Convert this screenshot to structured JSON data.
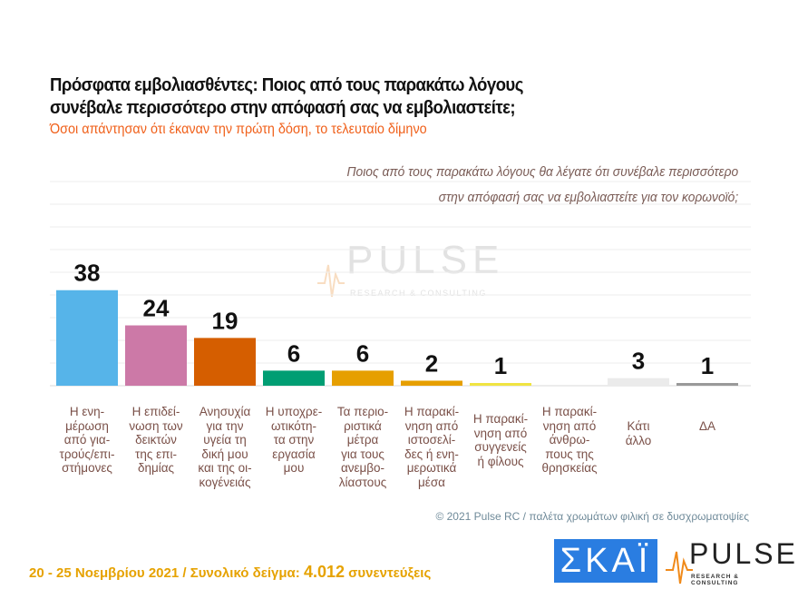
{
  "title_line1": "Πρόσφατα εμβολιασθέντες: Ποιος από τους παρακάτω λόγους",
  "title_line2": "συνέβαλε περισσότερο στην απόφασή σας να εμβολιαστείτε;",
  "subtitle": "Όσοι απάντησαν ότι έκαναν την πρώτη δόση, το τελευταίο δίμηνο",
  "question_line1": "Ποιος από τους παρακάτω λόγους θα λέγατε ότι συνέβαλε περισσότερο",
  "question_line2": "στην απόφασή σας να εμβολιαστείτε για τον κορωνοϊό;",
  "watermark": {
    "word": "PULSE",
    "sub": "RESEARCH & CONSULTING"
  },
  "chart_data": {
    "type": "bar",
    "categories": [
      "Η ενη-\nμέρωση\nαπό για-\nτρούς/επι-\nστήμονες",
      "Η επιδεί-\nνωση των\nδεικτών\nτης επι-\nδημίας",
      "Ανησυχία\nγια την\nυγεία τη\nδική μου\nκαι της οι-\nκογένειάς",
      "Η υποχρε-\nωτικότη-\nτα στην\nεργασία\nμου",
      "Τα περιο-\nριστικά\nμέτρα\nγια τους\nανεμβο-\nλίαστους",
      "Η παρακί-\nνηση από\nιστοσελί-\nδες ή ενη-\nμερωτικά\nμέσα",
      "Η παρακί-\nνηση από\nσυγγενείς\nή φίλους",
      "Η παρακί-\nνηση από\nάνθρω-\nπους της\nθρησκείας",
      "Κάτι\nάλλο",
      "ΔΑ"
    ],
    "values": [
      38,
      24,
      19,
      6,
      6,
      2,
      1,
      null,
      3,
      1
    ],
    "labels": [
      "38",
      "24",
      "19",
      "6",
      "6",
      "2",
      "1",
      "",
      "3",
      "1"
    ],
    "colors": [
      "#56b4e9",
      "#cc79a7",
      "#d55e00",
      "#009e73",
      "#e69f00",
      "#e69f00",
      "#f0e442",
      "#cccccc",
      "#ebebeb",
      "#999999"
    ],
    "ylim": [
      0,
      50
    ],
    "grid": true
  },
  "credit": "© 2021 Pulse RC   /   παλέτα χρωμάτων φιλική σε δυσχρωματοψίες",
  "footer": {
    "dates": "20 - 25  Νοεμβρίου 2021  /  Συνολικό δείγμα:  ",
    "sample": "4.012",
    "unit": " συνεντεύξεις"
  },
  "logos": {
    "skai": "ΣΚΑΪ",
    "pulse": "PULSE",
    "pulse_sub": "RESEARCH & CONSULTING"
  }
}
